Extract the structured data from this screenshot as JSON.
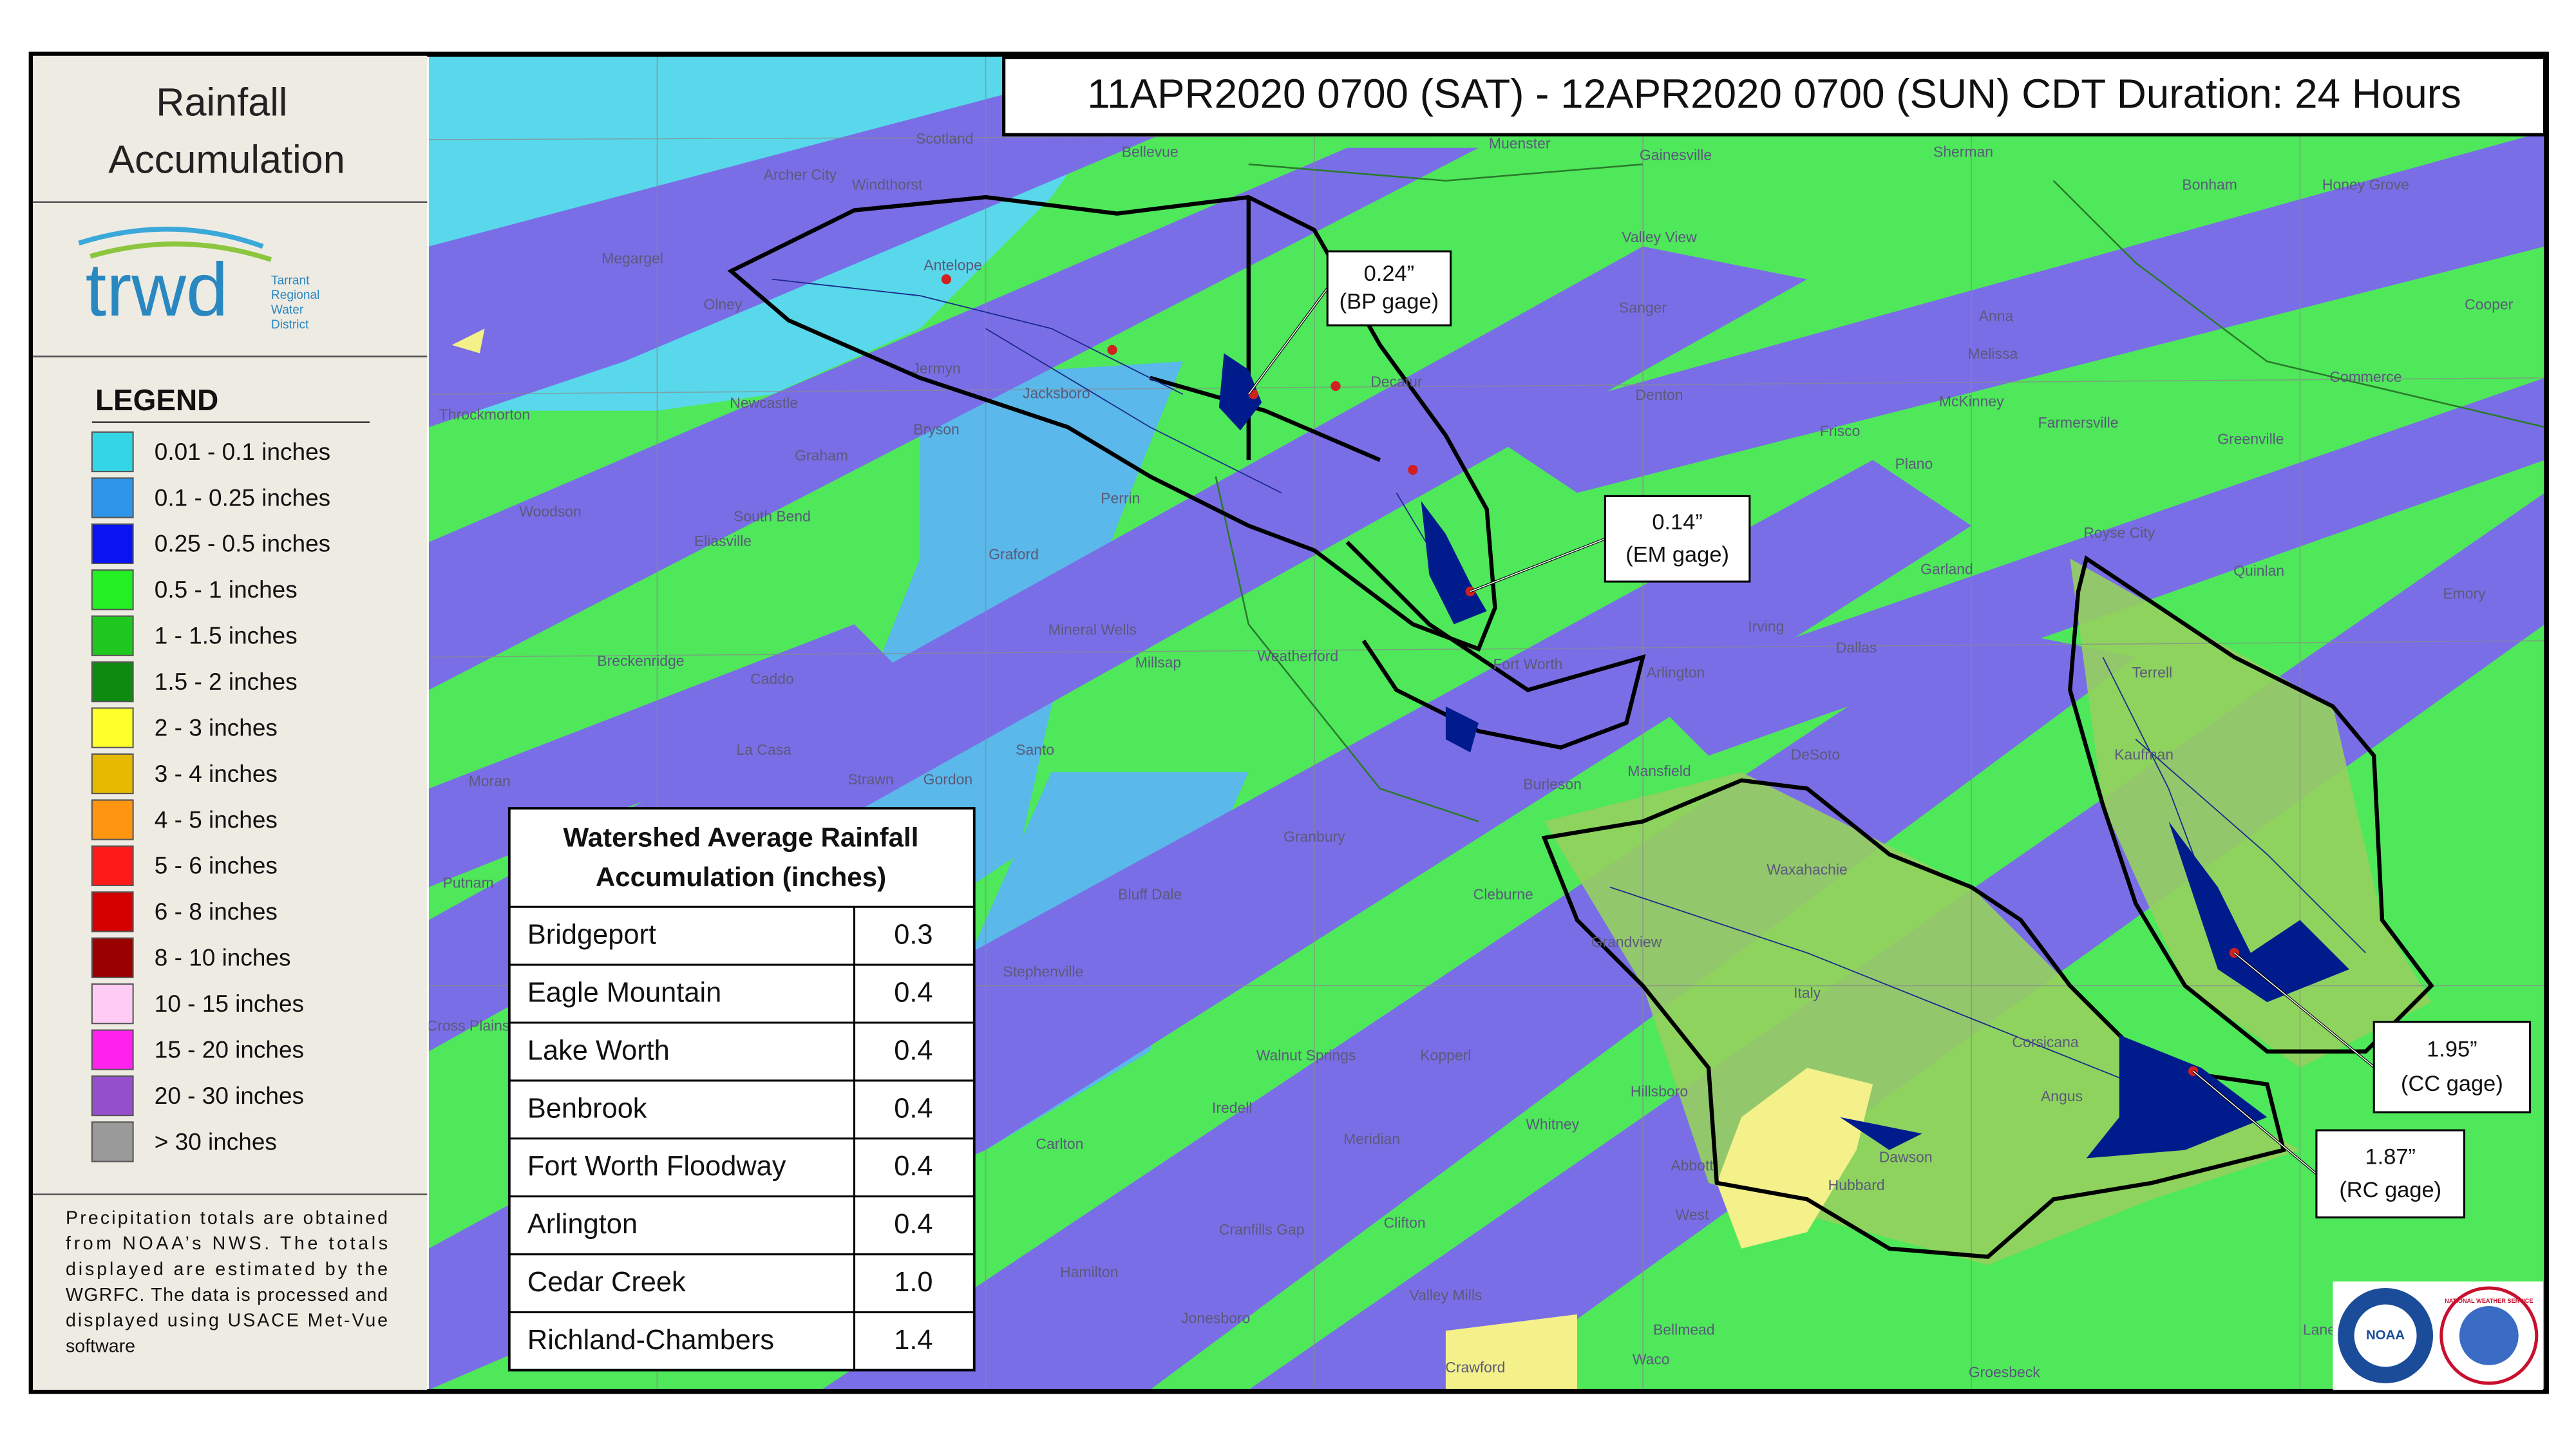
{
  "sidebar": {
    "title_lines": [
      "Rainfall",
      "Accumulation"
    ],
    "logo": {
      "wordmark": "trwd",
      "org_lines": [
        "Tarrant",
        "Regional",
        "Water",
        "District"
      ]
    },
    "legend": {
      "title": "LEGEND",
      "items": [
        {
          "label": "0.01 - 0.1 inches",
          "color": "#33d6e6"
        },
        {
          "label": "0.1 - 0.25 inches",
          "color": "#2e96ea"
        },
        {
          "label": "0.25 - 0.5 inches",
          "color": "#0a14f0"
        },
        {
          "label": "0.5 - 1 inches",
          "color": "#22f022"
        },
        {
          "label": "1 - 1.5 inches",
          "color": "#1ec81e"
        },
        {
          "label": "1.5 - 2 inches",
          "color": "#0e8a0e"
        },
        {
          "label": "2 - 3 inches",
          "color": "#ffff2a"
        },
        {
          "label": "3 - 4 inches",
          "color": "#e6b800"
        },
        {
          "label": "4 - 5 inches",
          "color": "#ff9510"
        },
        {
          "label": "5 - 6 inches",
          "color": "#ff1a1a"
        },
        {
          "label": "6 - 8 inches",
          "color": "#d40000"
        },
        {
          "label": "8 - 10 inches",
          "color": "#9a0000"
        },
        {
          "label": "10 - 15 inches",
          "color": "#ffccf5"
        },
        {
          "label": "15 - 20 inches",
          "color": "#ff22ee"
        },
        {
          "label": "20 - 30 inches",
          "color": "#9450cc"
        },
        {
          "label": "> 30 inches",
          "color": "#9a9a9a"
        }
      ]
    },
    "note_lines": [
      "Precipitation totals are obtained",
      "from NOAA’s NWS.  The totals",
      "displayed are estimated by the",
      "WGRFC.  The data is processed and",
      "displayed using USACE Met-Vue",
      "software"
    ]
  },
  "map": {
    "header": "11APR2020 0700 (SAT) - 12APR2020 0700 (SUN) CDT Duration: 24 Hours",
    "callouts": [
      {
        "value": "0.24”",
        "gage": "(BP gage)"
      },
      {
        "value": "0.14”",
        "gage": "(EM gage)"
      },
      {
        "value": "1.95”",
        "gage": "(CC gage)"
      },
      {
        "value": "1.87”",
        "gage": "(RC gage)"
      }
    ],
    "table": {
      "title_lines": [
        "Watershed Average Rainfall",
        "Accumulation (inches)"
      ],
      "rows": [
        [
          "Bridgeport",
          "0.3"
        ],
        [
          "Eagle Mountain",
          "0.4"
        ],
        [
          "Lake Worth",
          "0.4"
        ],
        [
          "Benbrook",
          "0.4"
        ],
        [
          "Fort Worth Floodway",
          "0.4"
        ],
        [
          "Arlington",
          "0.4"
        ],
        [
          "Cedar Creek",
          "1.0"
        ],
        [
          "Richland-Chambers",
          "1.4"
        ]
      ]
    },
    "places": [
      "Bellevue",
      "Muenster",
      "Gainesville",
      "Sherman",
      "Archer City",
      "Windthorst",
      "Scotland",
      "Bonham",
      "Honey Grove",
      "Megargel",
      "Olney",
      "Antelope",
      "Valley View",
      "Sanger",
      "Anna",
      "Jermyn",
      "Jacksboro",
      "Decatur",
      "Denton",
      "Melissa",
      "McKinney",
      "Newcastle",
      "Throckmorton",
      "Bryson",
      "Graham",
      "Frisco",
      "Farmersville",
      "Greenville",
      "Commerce",
      "Cooper",
      "Woodson",
      "South Bend",
      "Perrin",
      "Plano",
      "Eliasville",
      "Graford",
      "Royse City",
      "Quinlan",
      "Emory",
      "Garland",
      "Mineral Wells",
      "Irving",
      "Dallas",
      "Breckenridge",
      "Caddo",
      "Millsap",
      "Weatherford",
      "Fort Worth",
      "Arlington",
      "Terrell",
      "La Casa",
      "Santo",
      "Mansfield",
      "DeSoto",
      "Kaufman",
      "Moran",
      "Strawn",
      "Gordon",
      "Burleson",
      "Granbury",
      "Putnam",
      "Bluff Dale",
      "Cleburne",
      "Waxahachie",
      "Grandview",
      "Stephenville",
      "Italy",
      "Cross Plains",
      "Walnut Springs",
      "Kopperl",
      "Corsicana",
      "Hillsboro",
      "Iredell",
      "Angus",
      "Dawson",
      "Carlton",
      "Meridian",
      "Whitney",
      "Abbott",
      "Hubbard",
      "Hamilton",
      "Cranfills Gap",
      "Clifton",
      "West",
      "Valley Mills",
      "Jonesboro",
      "Bellmead",
      "Crawford",
      "Waco",
      "Groesbeck",
      "Lanely"
    ],
    "logos": [
      "NOAA",
      "NATIONAL WEATHER SERVICE"
    ]
  }
}
